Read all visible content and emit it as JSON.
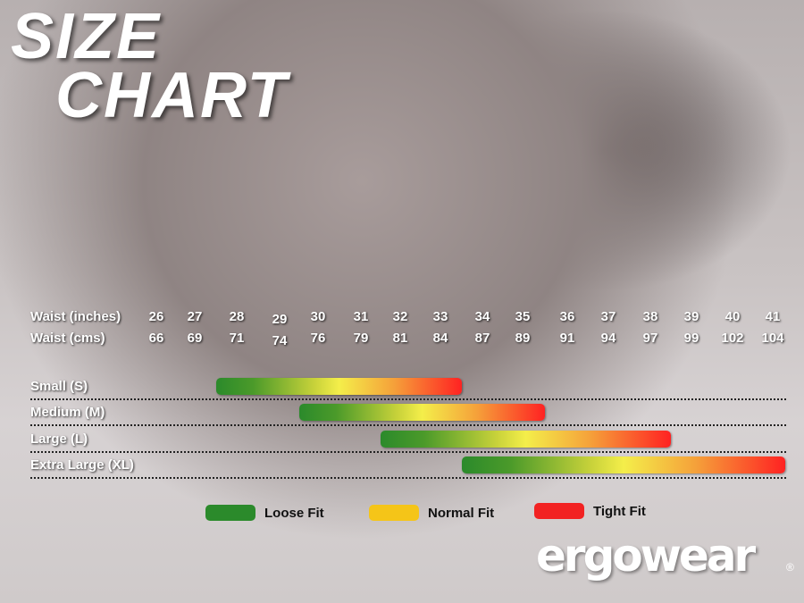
{
  "title": {
    "line1": "SIZE",
    "line2": "CHART"
  },
  "chart_data": {
    "type": "bar",
    "orientation": "horizontal-range",
    "row_labels": {
      "inches": "Waist (inches)",
      "cms": "Waist (cms)"
    },
    "x_inches": [
      "26",
      "27",
      "28",
      "29",
      "30",
      "31",
      "32",
      "33",
      "34",
      "35",
      "36",
      "37",
      "38",
      "39",
      "40",
      "41"
    ],
    "x_cms": [
      "66",
      "69",
      "71",
      "74",
      "76",
      "79",
      "81",
      "84",
      "87",
      "89",
      "91",
      "94",
      "97",
      "99",
      "102",
      "104"
    ],
    "series": [
      {
        "name": "Small (S)",
        "start": 27.5,
        "end": 33.5
      },
      {
        "name": "Medium (M)",
        "start": 29.5,
        "end": 35.5
      },
      {
        "name": "Large (L)",
        "start": 31.5,
        "end": 38.5
      },
      {
        "name": "Extra Large (XL)",
        "start": 33.5,
        "end": 41.3
      }
    ],
    "legend": [
      {
        "label": "Loose Fit",
        "color": "#2b8a2b"
      },
      {
        "label": "Normal Fit",
        "color": "#f5c518"
      },
      {
        "label": "Tight Fit",
        "color": "#f22222"
      }
    ],
    "legend_placement": "bottom"
  },
  "logo": {
    "text": "ergowear",
    "reg": "®"
  }
}
